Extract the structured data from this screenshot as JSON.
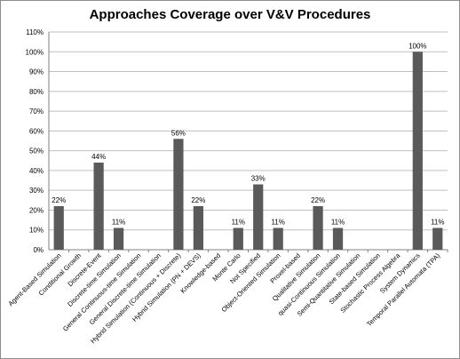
{
  "chart_data": {
    "type": "bar",
    "title": "Approaches Coverage over V&V Procedures",
    "xlabel": "",
    "ylabel": "",
    "ylim": [
      0,
      110
    ],
    "y_tick_step": 10,
    "y_tick_format": "percent",
    "grid": "horizontal",
    "legend": "none",
    "bar_color": "#5a5a5a",
    "categories": [
      "Agent-Based Simulation",
      "Conditional Growth",
      "Discrete-Event",
      "Discrete-time Simulation",
      "General Continuous-time Simulation",
      "General Discrete-time Simulation",
      "Hybrid Simulation (Continuous + Discrete)",
      "Hybrid Simulation (PN + DEVS)",
      "Knowledge-based",
      "Monte Carlo",
      "Not Specified",
      "Object-Oriented Simulation",
      "Proxel-based",
      "Qualitative Simulation",
      "quasi-Continuous Simulation",
      "Semi-Quantitative Simulation",
      "State-based Simulation",
      "Stochastic Process Algebra",
      "System Dynamics",
      "Temporal Parallel Automata (TPA)"
    ],
    "values": [
      22,
      0,
      44,
      11,
      0,
      0,
      56,
      22,
      0,
      11,
      33,
      11,
      0,
      22,
      11,
      0,
      0,
      0,
      100,
      11
    ],
    "data_labels": [
      "22%",
      "",
      "44%",
      "11%",
      "",
      "",
      "56%",
      "22%",
      "",
      "11%",
      "33%",
      "11%",
      "",
      "22%",
      "11%",
      "",
      "",
      "",
      "100%",
      "11%"
    ]
  }
}
